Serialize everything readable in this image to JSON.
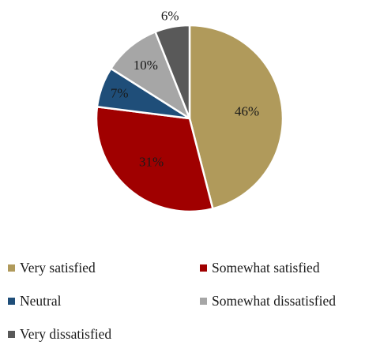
{
  "chart_data": {
    "type": "pie",
    "title": "",
    "legend_position": "bottom",
    "slices": [
      {
        "name": "Very satisfied",
        "value": 46,
        "label": "46%",
        "color": "#b09a5b"
      },
      {
        "name": "Somewhat satisfied",
        "value": 31,
        "label": "31%",
        "color": "#a00000"
      },
      {
        "name": "Neutral",
        "value": 7,
        "label": "7%",
        "color": "#1f4e79"
      },
      {
        "name": "Somewhat dissatisfied",
        "value": 10,
        "label": "10%",
        "color": "#a6a6a6"
      },
      {
        "name": "Very dissatisfied",
        "value": 6,
        "label": "6%",
        "color": "#595959"
      }
    ]
  }
}
